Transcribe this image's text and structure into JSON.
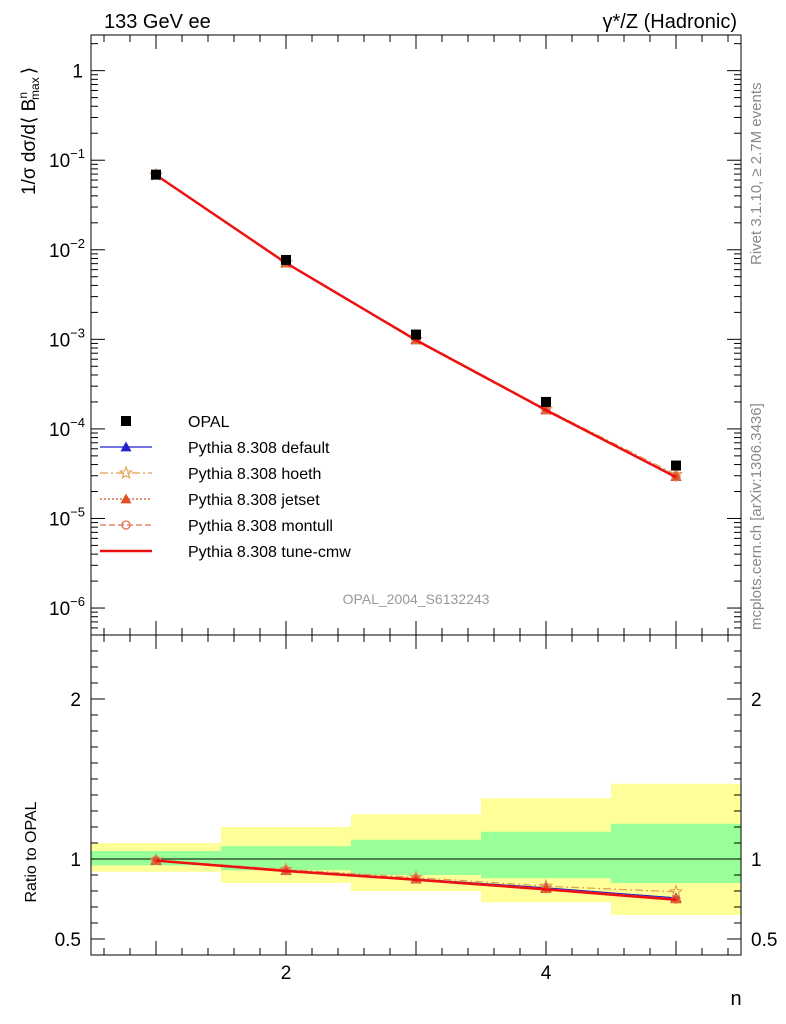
{
  "header": {
    "left": "133 GeV ee",
    "right": "γ*/Z (Hadronic)"
  },
  "side_labels": {
    "rivet": "Rivet 3.1.10, ≥ 2.7M events",
    "mcplots": "mcplots.cern.ch [arXiv:1306.3436]"
  },
  "watermark": "OPAL_2004_S6132243",
  "chart_data": [
    {
      "type": "scatter",
      "title": "",
      "xlabel": "n",
      "ylabel_parts": {
        "main": "1/σ dσ/d⟨ B",
        "sup": "n",
        "sub": "max",
        "close": "⟩"
      },
      "yscale": "log",
      "ylim": [
        5e-07,
        2.5
      ],
      "xlim": [
        0.5,
        5.5
      ],
      "y_ticks": [
        {
          "v": 1,
          "label": "1"
        },
        {
          "v": 0.1,
          "base": "10",
          "exp": "−1"
        },
        {
          "v": 0.01,
          "base": "10",
          "exp": "−2"
        },
        {
          "v": 0.001,
          "base": "10",
          "exp": "−3"
        },
        {
          "v": 0.0001,
          "base": "10",
          "exp": "−4"
        },
        {
          "v": 1e-05,
          "base": "10",
          "exp": "−5"
        },
        {
          "v": 1e-06,
          "base": "10",
          "exp": "−6"
        }
      ],
      "x": [
        1,
        2,
        3,
        4,
        5
      ],
      "legend_position": "bottom-left",
      "data_series": {
        "name": "OPAL",
        "color": "#000000",
        "values": [
          0.069,
          0.0077,
          0.00113,
          0.0002,
          3.9e-05
        ]
      },
      "series": [
        {
          "name": "Pythia 8.308 default",
          "color": "#2222cc",
          "marker": "triangle",
          "dash": "",
          "values": [
            0.0685,
            0.00715,
            0.00099,
            0.000164,
            2.95e-05
          ]
        },
        {
          "name": "Pythia 8.308 hoeth",
          "color": "#e0a050",
          "marker": "star",
          "dash": "8,3,2,3",
          "values": [
            0.0686,
            0.00718,
            0.001,
            0.000166,
            3.1e-05
          ]
        },
        {
          "name": "Pythia 8.308 jetset",
          "color": "#e05020",
          "marker": "triangle",
          "dash": "2,2",
          "values": [
            0.0684,
            0.00714,
            0.00099,
            0.000163,
            2.93e-05
          ]
        },
        {
          "name": "Pythia 8.308 montull",
          "color": "#e07050",
          "marker": "circle",
          "dash": "6,3",
          "values": [
            0.0684,
            0.00713,
            0.00099,
            0.000163,
            2.92e-05
          ]
        },
        {
          "name": "Pythia 8.308 tune-cmw",
          "color": "#ee1111",
          "marker": "none",
          "dash": "",
          "values": [
            0.0683,
            0.00712,
            0.00098,
            0.000162,
            2.9e-05
          ]
        }
      ]
    },
    {
      "type": "line",
      "ylabel": "Ratio to OPAL",
      "xlabel": "n",
      "ylim": [
        0.4,
        2.4
      ],
      "xlim": [
        0.5,
        5.5
      ],
      "y_tick_labels": [
        {
          "v": 0.5,
          "label": "0.5"
        },
        {
          "v": 1,
          "label": "1"
        },
        {
          "v": 2,
          "label": "2"
        }
      ],
      "x_tick_labels": [
        {
          "v": 2,
          "label": "2"
        },
        {
          "v": 4,
          "label": "4"
        }
      ],
      "x": [
        1,
        2,
        3,
        4,
        5
      ],
      "uncertainty_bands": {
        "inner_color": "#99ff99",
        "outer_color": "#ffff99",
        "inner": [
          [
            0.96,
            1.05
          ],
          [
            0.93,
            1.08
          ],
          [
            0.9,
            1.12
          ],
          [
            0.88,
            1.17
          ],
          [
            0.85,
            1.22
          ]
        ],
        "outer": [
          [
            0.92,
            1.1
          ],
          [
            0.85,
            1.2
          ],
          [
            0.8,
            1.28
          ],
          [
            0.73,
            1.38
          ],
          [
            0.65,
            1.47
          ]
        ]
      },
      "series": [
        {
          "name": "Pythia 8.308 default",
          "values": [
            0.992,
            0.93,
            0.875,
            0.82,
            0.757
          ]
        },
        {
          "name": "Pythia 8.308 hoeth",
          "values": [
            0.994,
            0.935,
            0.885,
            0.83,
            0.795
          ]
        },
        {
          "name": "Pythia 8.308 jetset",
          "values": [
            0.991,
            0.928,
            0.876,
            0.815,
            0.751
          ]
        },
        {
          "name": "Pythia 8.308 montull",
          "values": [
            0.991,
            0.927,
            0.874,
            0.814,
            0.749
          ]
        },
        {
          "name": "Pythia 8.308 tune-cmw",
          "values": [
            0.99,
            0.925,
            0.87,
            0.81,
            0.745
          ]
        }
      ]
    }
  ]
}
